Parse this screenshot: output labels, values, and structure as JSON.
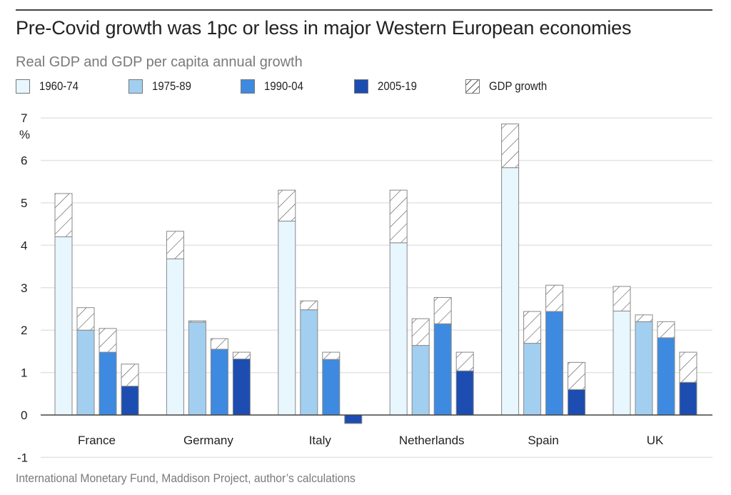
{
  "chart_data": {
    "type": "bar",
    "title": "Pre-Covid growth was 1pc or less in major Western European economies",
    "subtitle": "Real GDP and GDP per capita annual growth",
    "ylabel": "%",
    "xlabel": "",
    "ylim": [
      -1,
      7
    ],
    "yticks": [
      7,
      6,
      5,
      4,
      3,
      2,
      1,
      0,
      -1
    ],
    "grid": true,
    "legend_position": "top",
    "categories": [
      "France",
      "Germany",
      "Italy",
      "Netherlands",
      "Spain",
      "UK"
    ],
    "series": [
      {
        "name": "1960-74",
        "color": "#e8f6fd",
        "gdp_per_capita": [
          4.2,
          3.68,
          4.57,
          4.06,
          5.83,
          2.45
        ],
        "gdp_growth": [
          5.22,
          4.33,
          5.3,
          5.3,
          6.86,
          3.03
        ]
      },
      {
        "name": "1975-89",
        "color": "#a2cff0",
        "gdp_per_capita": [
          2.0,
          2.19,
          2.48,
          1.64,
          1.69,
          2.2
        ],
        "gdp_growth": [
          2.53,
          2.22,
          2.69,
          2.27,
          2.44,
          2.36
        ]
      },
      {
        "name": "1990-04",
        "color": "#3e8ae0",
        "gdp_per_capita": [
          1.48,
          1.55,
          1.31,
          2.15,
          2.44,
          1.82
        ],
        "gdp_growth": [
          2.04,
          1.8,
          1.48,
          2.77,
          3.06,
          2.2
        ]
      },
      {
        "name": "2005-19",
        "color": "#1d4db1",
        "gdp_per_capita": [
          0.68,
          1.32,
          -0.2,
          1.04,
          0.6,
          0.77
        ],
        "gdp_growth": [
          1.2,
          1.48,
          -0.2,
          1.48,
          1.24,
          1.48
        ]
      }
    ],
    "overlay_legend": "GDP growth",
    "source": "International Monetary Fund, Maddison Project, author’s calculations"
  },
  "legend": [
    {
      "label": "1960-74",
      "color": "#e8f6fd",
      "hatched": false
    },
    {
      "label": "1975-89",
      "color": "#a2cff0",
      "hatched": false
    },
    {
      "label": "1990-04",
      "color": "#3e8ae0",
      "hatched": false
    },
    {
      "label": "2005-19",
      "color": "#1d4db1",
      "hatched": false
    },
    {
      "label": "GDP growth",
      "color": "#ffffff",
      "hatched": true
    }
  ]
}
